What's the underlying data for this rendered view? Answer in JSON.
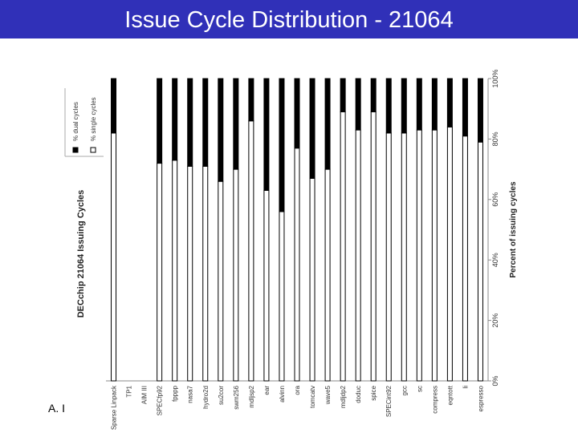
{
  "slide": {
    "title": "Issue Cycle Distribution - 21064",
    "footer": "A. I"
  },
  "colors": {
    "title_bg": "#3030b8",
    "title_text": "#ffffff",
    "dual": "#000000",
    "single": "#ffffff",
    "axis": "#888888"
  },
  "chart_data": {
    "type": "bar",
    "stacked": true,
    "title": "DECchip 21064 Issuing Cycles",
    "ylabel": "Percent of issuing cycles",
    "xlabel": "",
    "ylim": [
      0,
      100
    ],
    "ytick_labels": [
      "0%",
      "20%",
      "40%",
      "60%",
      "80%",
      "100%"
    ],
    "legend": {
      "position": "top-left",
      "entries": [
        "% dual cycles",
        "% single cycles"
      ]
    },
    "categories": [
      "Sparse Linpack",
      "TP1",
      "AIM III",
      "SPECfp92",
      "fpppp",
      "nasa7",
      "hydro2d",
      "su2cor",
      "swm256",
      "mdljsp2",
      "ear",
      "alvinn",
      "ora",
      "tomcatv",
      "wave5",
      "mdljdp2",
      "doduc",
      "spice",
      "SPECint92",
      "gcc",
      "sc",
      "compress",
      "eqntott",
      "li",
      "espresso"
    ],
    "series": [
      {
        "name": "% single cycles",
        "values": [
          82,
          null,
          null,
          72,
          73,
          71,
          71,
          66,
          70,
          86,
          63,
          56,
          77,
          67,
          70,
          89,
          83,
          89,
          82,
          82,
          83,
          83,
          84,
          81,
          79
        ]
      },
      {
        "name": "% dual cycles",
        "values": [
          18,
          null,
          null,
          28,
          27,
          29,
          29,
          34,
          30,
          14,
          37,
          44,
          23,
          33,
          30,
          11,
          17,
          11,
          18,
          18,
          17,
          17,
          16,
          19,
          21
        ]
      }
    ]
  }
}
